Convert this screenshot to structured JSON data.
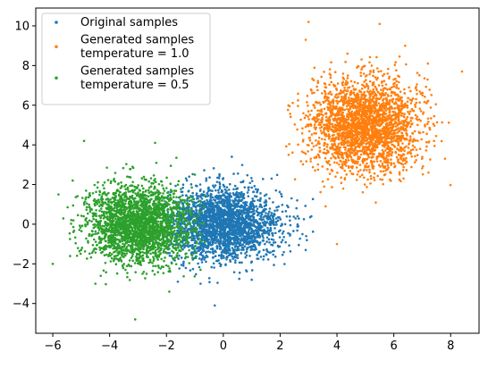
{
  "chart_data": {
    "type": "scatter",
    "title": "",
    "xlabel": "",
    "ylabel": "",
    "xlim": [
      -6.6,
      9.0
    ],
    "ylim": [
      -5.5,
      10.9
    ],
    "xticks": [
      -6,
      -4,
      -2,
      0,
      2,
      4,
      6,
      8
    ],
    "yticks": [
      -4,
      -2,
      0,
      2,
      4,
      6,
      8,
      10
    ],
    "xtick_labels": [
      "−6",
      "−4",
      "−2",
      "0",
      "2",
      "4",
      "6",
      "8"
    ],
    "ytick_labels": [
      "−4",
      "−2",
      "0",
      "2",
      "4",
      "6",
      "8",
      "10"
    ],
    "grid": false,
    "legend_position": "upper-left",
    "series": [
      {
        "name": "Original samples",
        "legend_lines": [
          "Original samples"
        ],
        "color": "#1f77b4",
        "approx_count": 2500,
        "center": [
          0.0,
          0.0
        ],
        "std": [
          1.0,
          0.9
        ],
        "x_range": [
          -2.1,
          3.2
        ],
        "y_range": [
          -4.1,
          3.4
        ],
        "sample_points": [
          [
            0.3,
            3.4
          ],
          [
            -0.3,
            -4.1
          ],
          [
            2.6,
            1.2
          ],
          [
            3.1,
            0.4
          ],
          [
            -1.6,
            -2.9
          ],
          [
            1.0,
            -2.8
          ],
          [
            -1.2,
            2.4
          ],
          [
            1.7,
            2.3
          ],
          [
            2.9,
            -1.3
          ],
          [
            -0.8,
            -3.0
          ]
        ]
      },
      {
        "name": "Generated samples temperature = 1.0",
        "legend_lines": [
          "Generated samples",
          "temperature = 1.0"
        ],
        "color": "#ff7f0e",
        "approx_count": 2500,
        "center": [
          5.0,
          5.0
        ],
        "std": [
          0.95,
          1.15
        ],
        "x_range": [
          2.2,
          8.4
        ],
        "y_range": [
          -1.0,
          10.2
        ],
        "sample_points": [
          [
            3.0,
            10.2
          ],
          [
            5.5,
            10.1
          ],
          [
            4.0,
            -1.0
          ],
          [
            8.4,
            7.7
          ],
          [
            2.3,
            3.5
          ],
          [
            2.9,
            9.3
          ],
          [
            7.8,
            3.3
          ],
          [
            3.6,
            0.9
          ],
          [
            6.4,
            9.0
          ],
          [
            7.2,
            8.1
          ]
        ]
      },
      {
        "name": "Generated samples temperature = 0.5",
        "legend_lines": [
          "Generated samples",
          "temperature = 0.5"
        ],
        "color": "#2ca02c",
        "approx_count": 2500,
        "center": [
          -3.0,
          0.0
        ],
        "std": [
          0.9,
          0.95
        ],
        "x_range": [
          -6.0,
          -0.6
        ],
        "y_range": [
          -4.8,
          4.2
        ],
        "sample_points": [
          [
            -4.9,
            4.2
          ],
          [
            -2.4,
            4.1
          ],
          [
            -3.1,
            -4.8
          ],
          [
            -6.0,
            -2.0
          ],
          [
            -5.8,
            1.5
          ],
          [
            -1.0,
            2.5
          ],
          [
            -0.8,
            -2.3
          ],
          [
            -4.5,
            -3.0
          ],
          [
            -5.3,
            2.2
          ],
          [
            -1.9,
            -3.4
          ]
        ]
      }
    ]
  }
}
